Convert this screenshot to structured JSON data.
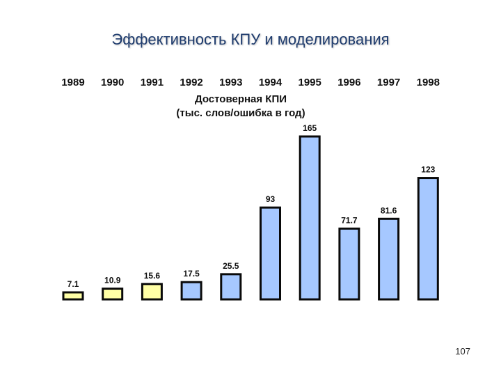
{
  "slide": {
    "title": "Эффективность КПУ и моделирования",
    "page_number": "107"
  },
  "chart_data": {
    "type": "bar",
    "title": "Достоверная КПИ",
    "subtitle": "(тыс. слов/ошибка в год)",
    "xlabel": "",
    "ylabel": "",
    "categories": [
      "1989",
      "1990",
      "1991",
      "1992",
      "1993",
      "1994",
      "1995",
      "1996",
      "1997",
      "1998"
    ],
    "values": [
      7.1,
      10.9,
      15.6,
      17.5,
      25.5,
      93,
      165,
      71.7,
      81.6,
      123
    ],
    "value_labels": [
      "7.1",
      "10.9",
      "15.6",
      "17.5",
      "25.5",
      "93",
      "165",
      "71.7",
      "81.6",
      "123"
    ],
    "plotted_in_column": [
      0,
      1,
      2,
      3,
      4,
      5,
      6,
      7,
      8,
      9
    ],
    "bar_colors": [
      "#ffffa6",
      "#ffffa6",
      "#ffffa6",
      "#a6c8ff",
      "#a6c8ff",
      "#a6c8ff",
      "#a6c8ff",
      "#a6c8ff",
      "#a6c8ff",
      "#a6c8ff"
    ],
    "bar_stroke": "#0a0a0a",
    "grid": false,
    "legend": "none",
    "category_position": "top"
  }
}
